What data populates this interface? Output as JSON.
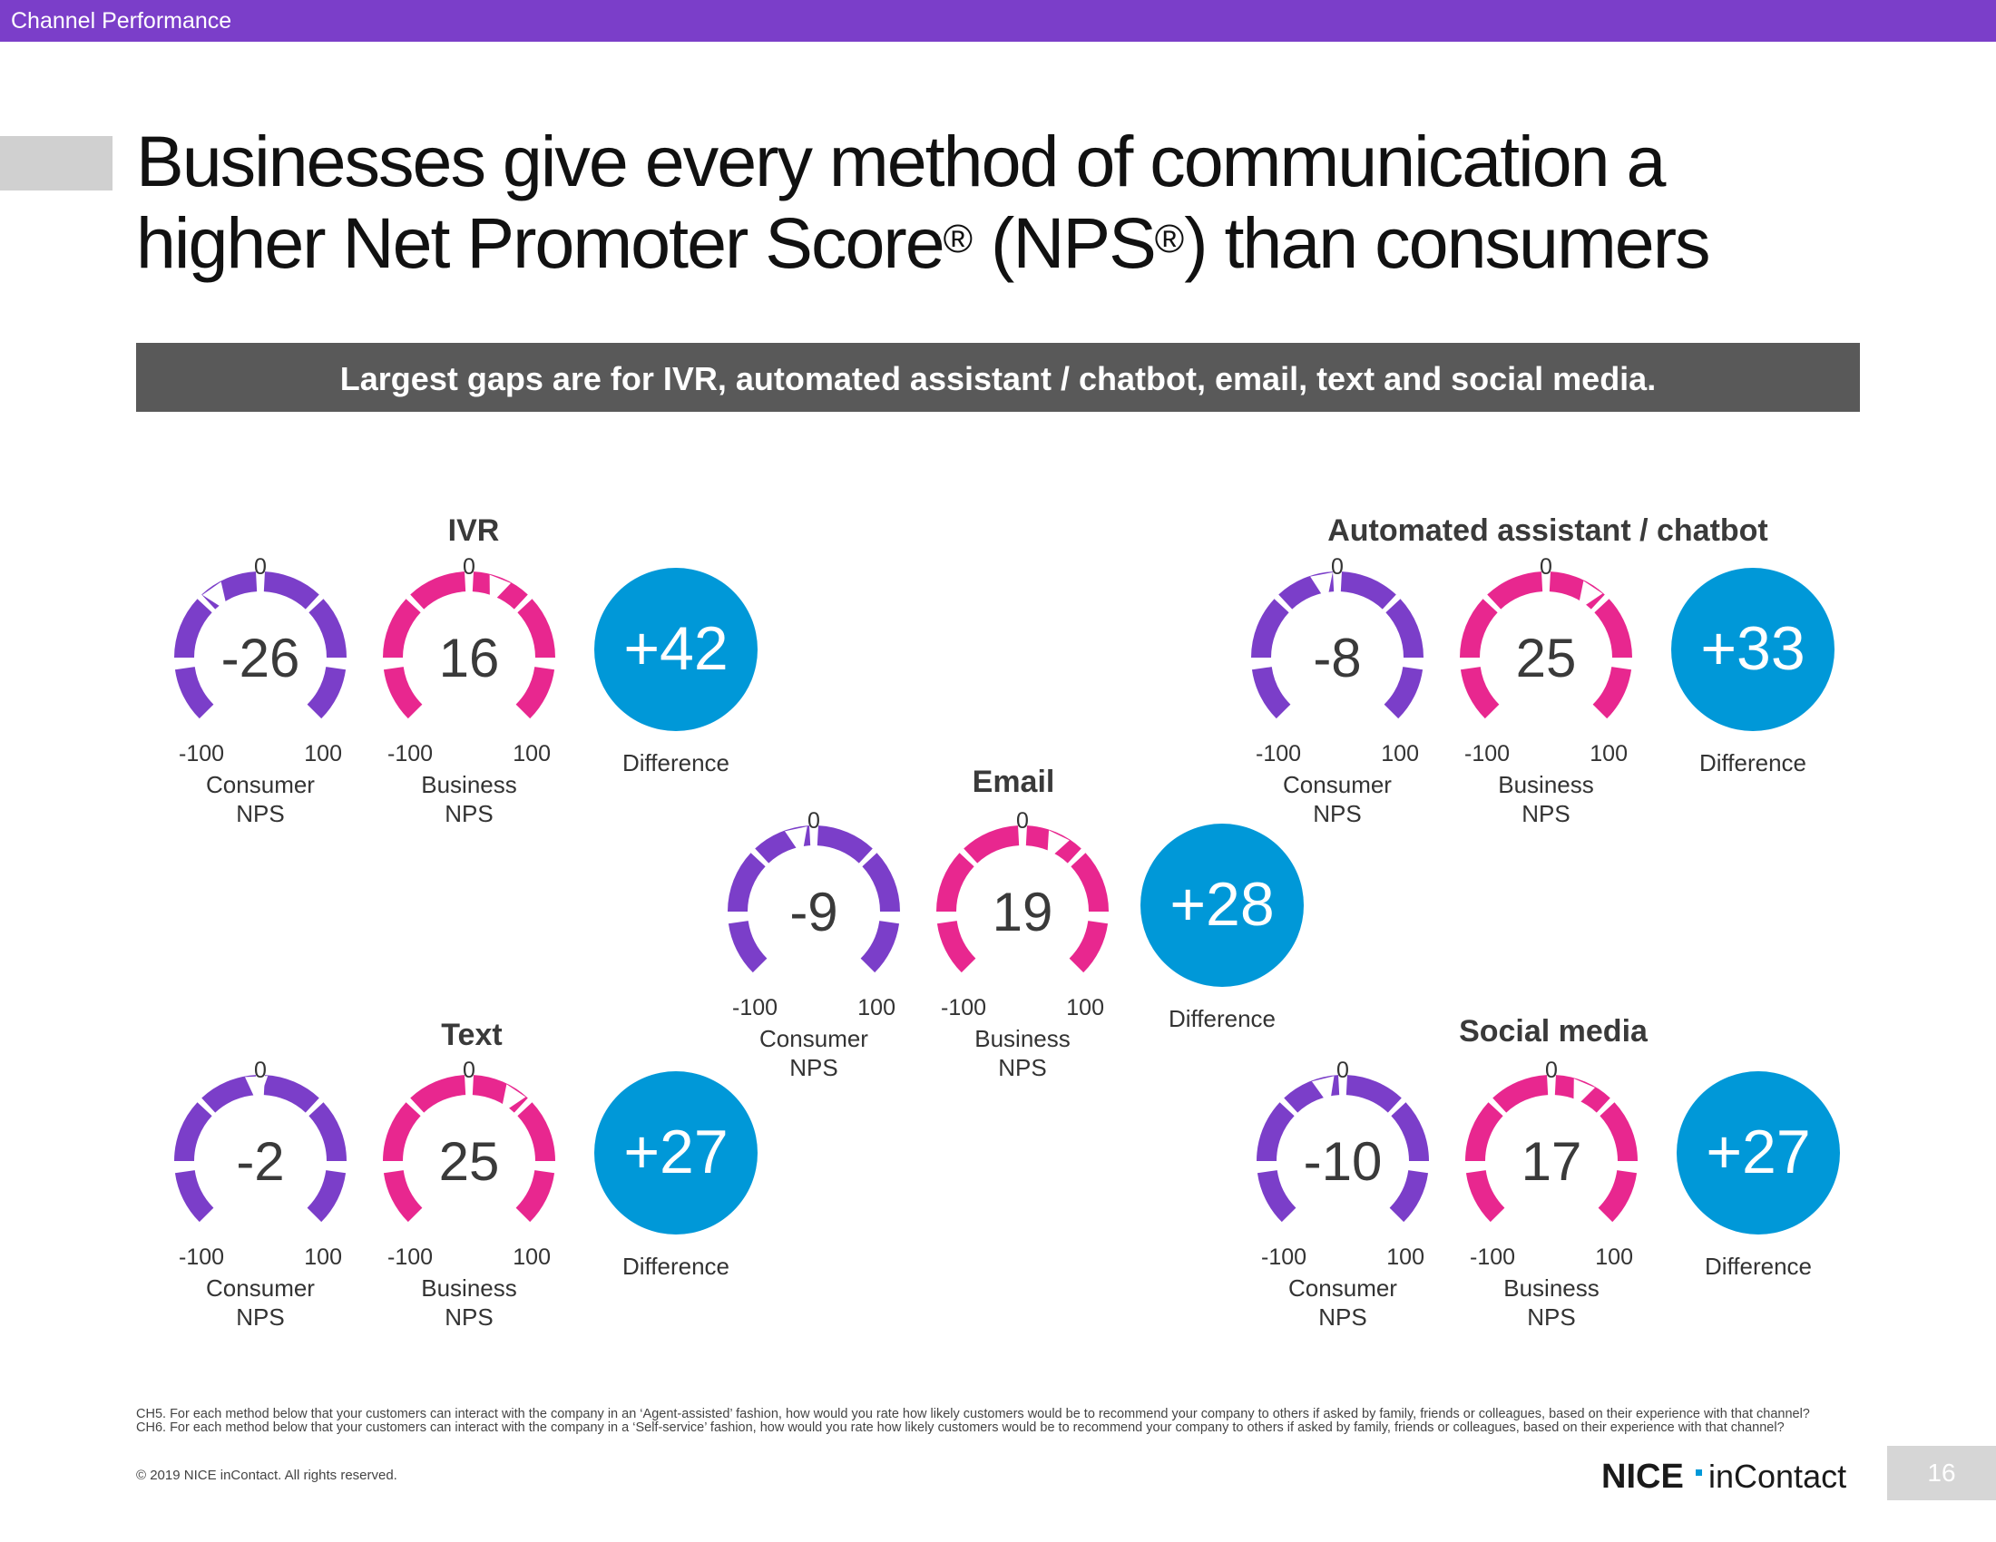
{
  "header": {
    "section": "Channel Performance"
  },
  "title": {
    "line1": "Businesses give every method of communication a",
    "line2_a": "higher Net Promoter Score",
    "reg": "®",
    "line2_b": " (NPS",
    "line2_c": ") than consumers"
  },
  "banner": {
    "text": "Largest gaps are for IVR, automated assistant / chatbot, email, text and social media."
  },
  "colors": {
    "consumer": "#7b3ec9",
    "business": "#e8278f",
    "difference": "#0098d8",
    "topbar": "#7b3ec9"
  },
  "gauge_scale": {
    "min_label": "-100",
    "zero_label": "0",
    "max_label": "100"
  },
  "labels": {
    "consumer": "Consumer\nNPS",
    "business": "Business\nNPS",
    "difference": "Difference"
  },
  "chart_data": [
    {
      "type": "gauge",
      "title": "IVR",
      "range": [
        -100,
        100
      ],
      "series": [
        {
          "name": "Consumer NPS",
          "value": -26
        },
        {
          "name": "Business NPS",
          "value": 16
        }
      ],
      "difference": "+42"
    },
    {
      "type": "gauge",
      "title": "Automated assistant / chatbot",
      "range": [
        -100,
        100
      ],
      "series": [
        {
          "name": "Consumer NPS",
          "value": -8
        },
        {
          "name": "Business NPS",
          "value": 25
        }
      ],
      "difference": "+33"
    },
    {
      "type": "gauge",
      "title": "Email",
      "range": [
        -100,
        100
      ],
      "series": [
        {
          "name": "Consumer NPS",
          "value": -9
        },
        {
          "name": "Business NPS",
          "value": 19
        }
      ],
      "difference": "+28"
    },
    {
      "type": "gauge",
      "title": "Text",
      "range": [
        -100,
        100
      ],
      "series": [
        {
          "name": "Consumer NPS",
          "value": -2
        },
        {
          "name": "Business NPS",
          "value": 25
        }
      ],
      "difference": "+27"
    },
    {
      "type": "gauge",
      "title": "Social media",
      "range": [
        -100,
        100
      ],
      "series": [
        {
          "name": "Consumer NPS",
          "value": -10
        },
        {
          "name": "Business NPS",
          "value": 17
        }
      ],
      "difference": "+27"
    }
  ],
  "footnote": "CH5. For each method below that your customers can interact with the company in an ‘Agent-assisted’ fashion, how would you rate how likely customers would be to recommend your company to others if asked by family, friends or colleagues, based on their experience with that channel?  CH6. For each method below that your customers can interact with the company in a ‘Self-service’ fashion, how would you rate how likely customers would be to recommend your company to others if asked by family, friends or colleagues, based on their experience with that channel?",
  "copyright": "© 2019 NICE inContact. All rights reserved.",
  "logo": {
    "nice": "NICE",
    "brand": "inContact"
  },
  "page_number": "16"
}
